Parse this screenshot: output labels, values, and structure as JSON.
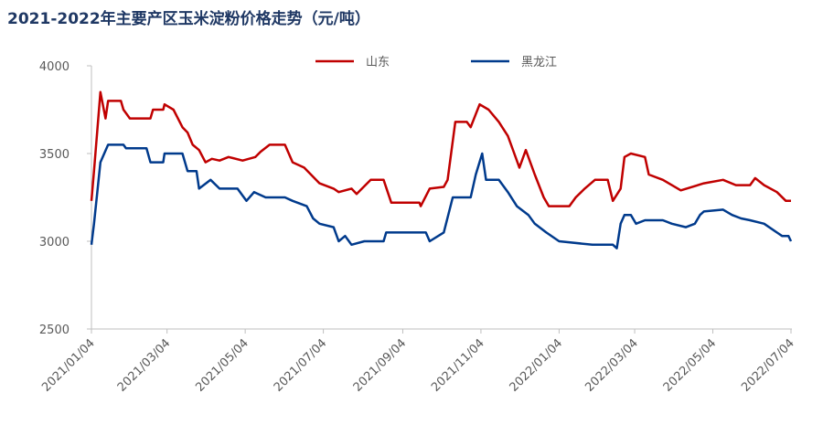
{
  "chart_data": {
    "type": "line",
    "title": "2021-2022年主要产区玉米淀粉价格走势（元/吨）",
    "xlim": [
      "2021/01/04",
      "2022/07/04"
    ],
    "xticks": [
      "2021/01/04",
      "2021/03/04",
      "2021/05/04",
      "2021/07/04",
      "2021/09/04",
      "2021/11/04",
      "2022/01/04",
      "2022/03/04",
      "2022/05/04",
      "2022/07/04"
    ],
    "ylim": [
      2500,
      4000
    ],
    "yticks": [
      2500,
      3000,
      3500,
      4000
    ],
    "grid": false,
    "legend": "top",
    "series": [
      {
        "name": "山东",
        "color": "#c00000",
        "x": [
          "2021/01/04",
          "2021/01/06",
          "2021/01/11",
          "2021/01/15",
          "2021/01/17",
          "2021/01/27",
          "2021/01/29",
          "2021/02/03",
          "2021/02/19",
          "2021/02/21",
          "2021/03/01",
          "2021/03/02",
          "2021/03/09",
          "2021/03/16",
          "2021/03/20",
          "2021/03/24",
          "2021/03/29",
          "2021/04/03",
          "2021/04/08",
          "2021/04/14",
          "2021/04/21",
          "2021/05/02",
          "2021/05/12",
          "2021/05/16",
          "2021/05/23",
          "2021/06/04",
          "2021/06/10",
          "2021/06/19",
          "2021/07/01",
          "2021/07/12",
          "2021/07/16",
          "2021/07/26",
          "2021/07/30",
          "2021/08/10",
          "2021/08/20",
          "2021/08/26",
          "2021/09/17",
          "2021/09/18",
          "2021/09/25",
          "2021/10/06",
          "2021/10/09",
          "2021/10/15",
          "2021/10/24",
          "2021/10/27",
          "2021/11/03",
          "2021/11/10",
          "2021/11/18",
          "2021/11/25",
          "2021/11/30",
          "2021/12/04",
          "2021/12/09",
          "2021/12/16",
          "2021/12/23",
          "2021/12/27",
          "2022/01/12",
          "2022/01/17",
          "2022/01/24",
          "2022/02/01",
          "2022/02/11",
          "2022/02/15",
          "2022/02/21",
          "2022/02/24",
          "2022/03/01",
          "2022/03/12",
          "2022/03/15",
          "2022/03/26",
          "2022/04/02",
          "2022/04/09",
          "2022/04/27",
          "2022/05/12",
          "2022/05/22",
          "2022/06/02",
          "2022/06/06",
          "2022/06/13",
          "2022/06/23",
          "2022/06/30",
          "2022/07/04"
        ],
        "values": [
          3230,
          3400,
          3850,
          3700,
          3800,
          3800,
          3750,
          3700,
          3700,
          3750,
          3750,
          3780,
          3750,
          3650,
          3620,
          3550,
          3520,
          3450,
          3470,
          3460,
          3480,
          3460,
          3480,
          3510,
          3550,
          3550,
          3450,
          3420,
          3330,
          3300,
          3280,
          3300,
          3270,
          3350,
          3350,
          3220,
          3220,
          3200,
          3300,
          3310,
          3350,
          3680,
          3680,
          3650,
          3780,
          3750,
          3680,
          3600,
          3500,
          3420,
          3520,
          3380,
          3250,
          3200,
          3200,
          3250,
          3300,
          3350,
          3350,
          3230,
          3300,
          3480,
          3500,
          3480,
          3380,
          3350,
          3320,
          3290,
          3330,
          3350,
          3320,
          3320,
          3360,
          3320,
          3280,
          3230,
          3230
        ]
      },
      {
        "name": "黑龙江",
        "color": "#003a8c",
        "x": [
          "2021/01/04",
          "2021/01/06",
          "2021/01/11",
          "2021/01/17",
          "2021/01/29",
          "2021/01/31",
          "2021/02/16",
          "2021/02/19",
          "2021/03/01",
          "2021/03/02",
          "2021/03/16",
          "2021/03/20",
          "2021/03/27",
          "2021/03/29",
          "2021/04/07",
          "2021/04/14",
          "2021/04/28",
          "2021/05/05",
          "2021/05/11",
          "2021/05/20",
          "2021/06/04",
          "2021/06/10",
          "2021/06/21",
          "2021/06/26",
          "2021/07/01",
          "2021/07/12",
          "2021/07/16",
          "2021/07/21",
          "2021/07/26",
          "2021/08/05",
          "2021/08/20",
          "2021/08/22",
          "2021/09/22",
          "2021/09/25",
          "2021/10/06",
          "2021/10/13",
          "2021/10/27",
          "2021/10/31",
          "2021/11/05",
          "2021/11/08",
          "2021/11/18",
          "2021/11/25",
          "2021/12/02",
          "2021/12/11",
          "2021/12/16",
          "2021/12/25",
          "2022/01/04",
          "2022/01/30",
          "2022/02/15",
          "2022/02/18",
          "2022/02/21",
          "2022/02/24",
          "2022/03/01",
          "2022/03/05",
          "2022/03/12",
          "2022/03/26",
          "2022/04/02",
          "2022/04/13",
          "2022/04/20",
          "2022/04/24",
          "2022/04/27",
          "2022/05/12",
          "2022/05/19",
          "2022/05/26",
          "2022/06/02",
          "2022/06/13",
          "2022/06/23",
          "2022/06/27",
          "2022/07/02",
          "2022/07/04"
        ],
        "values": [
          2980,
          3100,
          3450,
          3550,
          3550,
          3530,
          3530,
          3450,
          3450,
          3500,
          3500,
          3400,
          3400,
          3300,
          3350,
          3300,
          3300,
          3230,
          3280,
          3250,
          3250,
          3230,
          3200,
          3130,
          3100,
          3080,
          3000,
          3030,
          2980,
          3000,
          3000,
          3050,
          3050,
          3000,
          3050,
          3250,
          3250,
          3380,
          3500,
          3350,
          3350,
          3280,
          3200,
          3150,
          3100,
          3050,
          3000,
          2980,
          2980,
          2960,
          3100,
          3150,
          3150,
          3100,
          3120,
          3120,
          3100,
          3080,
          3100,
          3150,
          3170,
          3180,
          3150,
          3130,
          3120,
          3100,
          3050,
          3030,
          3030,
          3000
        ]
      }
    ]
  }
}
